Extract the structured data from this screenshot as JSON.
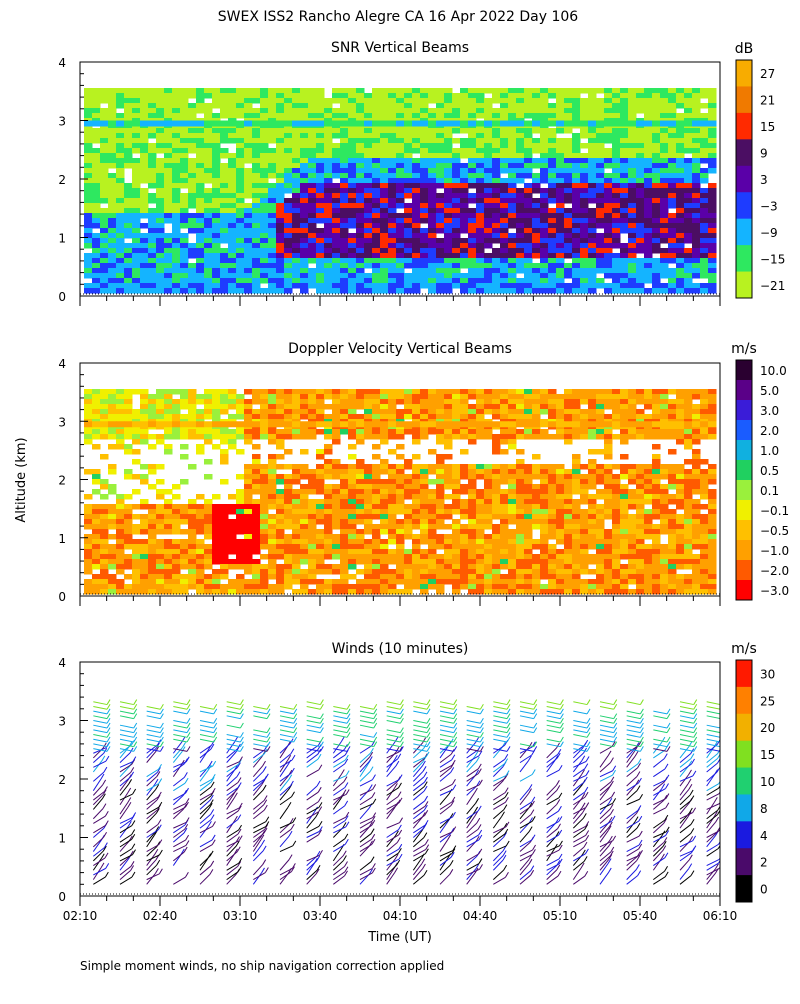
{
  "page": {
    "title": "SWEX ISS2 Rancho Alegre CA  16 Apr 2022 Day 106",
    "shared_ylabel": "Altitude (km)",
    "footnote": "Simple moment winds, no ship navigation correction applied"
  },
  "chart_data": [
    {
      "id": "snr",
      "type": "heatmap",
      "title": "SNR Vertical Beams",
      "ylabel": "Altitude (km)",
      "xlabel": "",
      "ylim": [
        0,
        4
      ],
      "yticks": [
        "0",
        "1",
        "2",
        "3",
        "4"
      ],
      "xlim_minutes": [
        130,
        370
      ],
      "colorbar": {
        "unit": "dB",
        "labels": [
          "27",
          "21",
          "15",
          "9",
          "3",
          "−3",
          "−9",
          "−15",
          "−21"
        ],
        "colors": [
          "#f8ac00",
          "#f07a00",
          "#ff2a00",
          "#4b0e63",
          "#5a00a8",
          "#1e3cff",
          "#14b4ff",
          "#2ee860",
          "#b8f220"
        ]
      }
    },
    {
      "id": "doppler",
      "type": "heatmap",
      "title": "Doppler Velocity Vertical Beams",
      "ylabel": "Altitude (km)",
      "xlabel": "",
      "ylim": [
        0,
        4
      ],
      "yticks": [
        "0",
        "1",
        "2",
        "3",
        "4"
      ],
      "xlim_minutes": [
        130,
        370
      ],
      "colorbar": {
        "unit": "m/s",
        "labels": [
          "10.0",
          "5.0",
          "3.0",
          "2.0",
          "1.0",
          "0.5",
          "0.1",
          "−0.1",
          "−0.5",
          "−1.0",
          "−2.0",
          "−3.0"
        ],
        "colors": [
          "#2a0030",
          "#5a0088",
          "#3a1cd8",
          "#1a5cff",
          "#10b0e0",
          "#20d060",
          "#9af03c",
          "#f0f000",
          "#ffc000",
          "#ffa000",
          "#ff5a00",
          "#ff0000"
        ]
      }
    },
    {
      "id": "winds",
      "type": "wind_barbs",
      "title": "Winds (10 minutes)",
      "ylabel": "Altitude (km)",
      "xlabel": "Time (UT)",
      "ylim": [
        0,
        4
      ],
      "yticks": [
        "0",
        "1",
        "2",
        "3",
        "4"
      ],
      "xlim_minutes": [
        130,
        370
      ],
      "xticks": [
        "02:10",
        "02:40",
        "03:10",
        "03:40",
        "04:10",
        "04:40",
        "05:10",
        "05:40",
        "06:10"
      ],
      "colorbar": {
        "unit": "m/s",
        "labels": [
          "30",
          "25",
          "20",
          "15",
          "10",
          "8",
          "4",
          "2",
          "0"
        ],
        "colors": [
          "#ff1a00",
          "#ff8000",
          "#f2b000",
          "#80e020",
          "#20d070",
          "#10a8e8",
          "#1a1ae0",
          "#4a0a6a",
          "#000000"
        ]
      }
    }
  ]
}
